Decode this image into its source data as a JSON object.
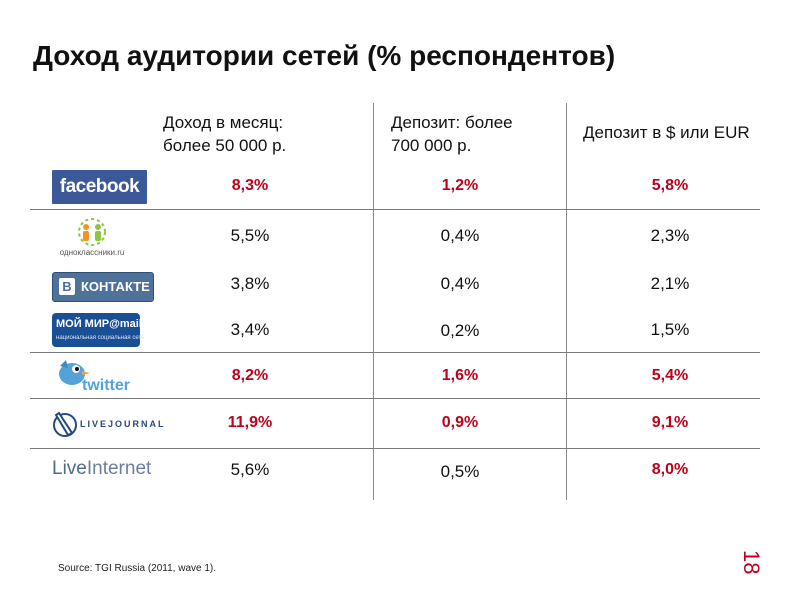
{
  "title": "Доход аудитории сетей (% респондентов)",
  "headers": {
    "col1_line1": "Доход в месяц:",
    "col1_line2": "более 50 000 р.",
    "col2_line1": "Депозит: более",
    "col2_line2": "700 000 р.",
    "col3": "Депозит в $ или EUR"
  },
  "rows": [
    {
      "network": "facebook",
      "logo_text": "facebook",
      "v1": "8,3%",
      "v2": "1,2%",
      "v3": "5,8%"
    },
    {
      "network": "odnoklassniki",
      "logo_text": "одноклассники.ru",
      "v1": "5,5%",
      "v2": "0,4%",
      "v3": "2,3%"
    },
    {
      "network": "vkontakte",
      "logo_b": "В",
      "logo_text": "КОНТАКТЕ",
      "v1": "3,8%",
      "v2": "0,4%",
      "v3": "2,1%"
    },
    {
      "network": "moy-mir",
      "logo_text": "МОЙ МИР@mail.ru",
      "logo_sub": "национальная социальная сеть",
      "v1": "3,4%",
      "v2": "0,2%",
      "v3": "1,5%"
    },
    {
      "network": "twitter",
      "logo_text": "twitter",
      "v1": "8,2%",
      "v2": "1,6%",
      "v3": "5,4%"
    },
    {
      "network": "livejournal",
      "logo_text": "LIVEJOURNAL",
      "v1": "11,9%",
      "v2": "0,9%",
      "v3": "9,1%"
    },
    {
      "network": "liveinternet",
      "logo_text_a": "Live",
      "logo_text_b": "Internet",
      "v1": "5,6%",
      "v2": "0,5%",
      "v3": "8,0%"
    }
  ],
  "source": "Source: TGI Russia (2011, wave 1).",
  "page_number": "18",
  "colors": {
    "highlight": "#c0001a",
    "facebook": "#3b5998",
    "vkontakte": "#4e729a"
  }
}
